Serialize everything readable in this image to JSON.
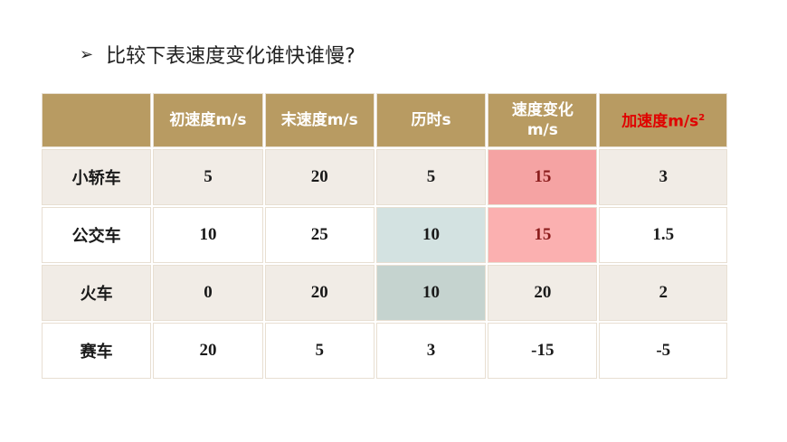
{
  "heading": {
    "bullet": "➢",
    "text": "比较下表速度变化谁快谁慢?"
  },
  "table": {
    "headers": [
      "",
      "初速度m/s",
      "末速度m/s",
      "历时s",
      "速度变化",
      "加速度m/s"
    ],
    "header_line2": {
      "velocity_change_unit": "m/s",
      "accel_exponent": "2"
    },
    "rows": [
      {
        "label": "小轿车",
        "v0": "5",
        "v1": "20",
        "t": "5",
        "dv": "15",
        "a": "3"
      },
      {
        "label": "公交车",
        "v0": "10",
        "v1": "25",
        "t": "10",
        "dv": "15",
        "a": "1.5"
      },
      {
        "label": "火车",
        "v0": "0",
        "v1": "20",
        "t": "10",
        "dv": "20",
        "a": "2"
      },
      {
        "label": "赛车",
        "v0": "20",
        "v1": "5",
        "t": "3",
        "dv": "-15",
        "a": "-5"
      }
    ]
  },
  "colors": {
    "header_bg": "#b89b62",
    "header_text": "#ffffff",
    "accel_header_text": "#e00000",
    "highlight_pink": "#fbb0b0",
    "highlight_teal": "#d3e2e1"
  }
}
